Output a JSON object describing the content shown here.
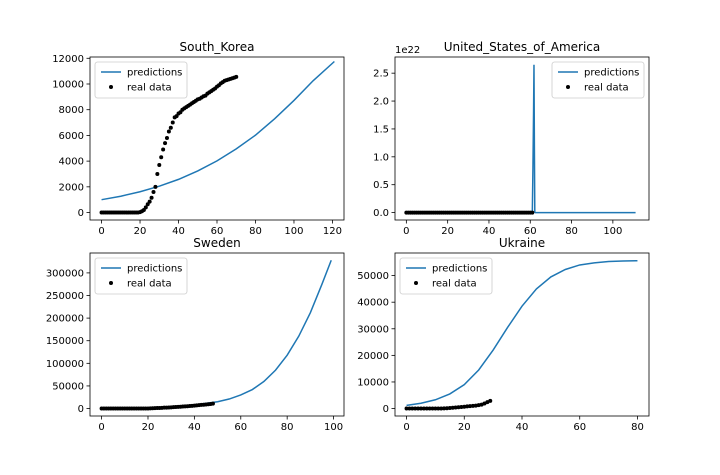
{
  "figure": {
    "background": "#ffffff",
    "pred_color": "#1f77b4",
    "real_color": "#000000"
  },
  "chart_data": [
    {
      "type": "line",
      "title": "South_Korea",
      "xlim": [
        -6,
        126
      ],
      "ylim": [
        -580,
        12100
      ],
      "xticks": [
        0,
        20,
        40,
        60,
        80,
        100,
        120
      ],
      "xtick_labels": [
        "0",
        "20",
        "40",
        "60",
        "80",
        "100",
        "120"
      ],
      "yticks": [
        0,
        2000,
        4000,
        6000,
        8000,
        10000,
        12000
      ],
      "ytick_labels": [
        "0",
        "2000",
        "4000",
        "6000",
        "8000",
        "10000",
        "12000"
      ],
      "offset_label": "",
      "legend": {
        "position": "upper left",
        "entries": [
          "predictions",
          "real data"
        ]
      },
      "series": [
        {
          "name": "predictions",
          "kind": "line",
          "x": [
            0,
            10,
            20,
            30,
            40,
            50,
            60,
            70,
            80,
            90,
            100,
            110,
            121
          ],
          "y": [
            1000,
            1270,
            1620,
            2050,
            2580,
            3240,
            4020,
            4950,
            6020,
            7300,
            8720,
            10260,
            11750
          ]
        },
        {
          "name": "real data",
          "kind": "scatter",
          "x": [
            0,
            1,
            2,
            3,
            4,
            5,
            6,
            7,
            8,
            9,
            10,
            11,
            12,
            13,
            14,
            15,
            16,
            17,
            18,
            19,
            20,
            21,
            22,
            23,
            24,
            25,
            26,
            27,
            28,
            29,
            30,
            31,
            32,
            33,
            34,
            35,
            36,
            37,
            38,
            39,
            40,
            41,
            42,
            43,
            44,
            45,
            46,
            47,
            48,
            49,
            50,
            51,
            52,
            53,
            54,
            55,
            56,
            57,
            58,
            59,
            60,
            61,
            62,
            63,
            64,
            65,
            66,
            67,
            68,
            69,
            70
          ],
          "y": [
            0,
            0,
            0,
            0,
            0,
            0,
            0,
            0,
            0,
            0,
            0,
            0,
            0,
            0,
            0,
            0,
            0,
            0,
            0,
            0,
            30,
            100,
            200,
            400,
            650,
            850,
            1150,
            1600,
            2000,
            3000,
            3700,
            4300,
            4900,
            5400,
            5800,
            6300,
            6600,
            7000,
            7400,
            7500,
            7700,
            7800,
            8000,
            8100,
            8200,
            8300,
            8400,
            8500,
            8600,
            8700,
            8800,
            8850,
            8950,
            9050,
            9100,
            9250,
            9350,
            9450,
            9550,
            9650,
            9800,
            9900,
            10050,
            10150,
            10250,
            10300,
            10350,
            10400,
            10450,
            10500,
            10550
          ]
        }
      ]
    },
    {
      "type": "line",
      "title": "United_States_of_America",
      "xlim": [
        -5.5,
        117.5
      ],
      "ylim": [
        -0.133,
        2.79
      ],
      "xticks": [
        0,
        20,
        40,
        60,
        80,
        100
      ],
      "xtick_labels": [
        "0",
        "20",
        "40",
        "60",
        "80",
        "100"
      ],
      "yticks": [
        0,
        0.5,
        1.0,
        1.5,
        2.0,
        2.5
      ],
      "ytick_labels": [
        "0.0",
        "0.5",
        "1.0",
        "1.5",
        "2.0",
        "2.5"
      ],
      "offset_label": "1e22",
      "legend": {
        "position": "upper right",
        "entries": [
          "predictions",
          "real data"
        ]
      },
      "series": [
        {
          "name": "predictions",
          "kind": "line",
          "x": [
            0,
            61,
            61,
            61.3,
            61.6,
            61.8,
            62,
            62.2,
            62.5,
            111
          ],
          "y": [
            0,
            0,
            0.01,
            0.8,
            1.8,
            2.65,
            1.2,
            0.01,
            0,
            0
          ]
        },
        {
          "name": "real data",
          "kind": "scatter",
          "x": [
            0,
            1,
            2,
            3,
            4,
            5,
            6,
            7,
            8,
            9,
            10,
            11,
            12,
            13,
            14,
            15,
            16,
            17,
            18,
            19,
            20,
            21,
            22,
            23,
            24,
            25,
            26,
            27,
            28,
            29,
            30,
            31,
            32,
            33,
            34,
            35,
            36,
            37,
            38,
            39,
            40,
            41,
            42,
            43,
            44,
            45,
            46,
            47,
            48,
            49,
            50,
            51,
            52,
            53,
            54,
            55,
            56,
            57,
            58,
            59,
            60,
            61
          ],
          "y": [
            0,
            0,
            0,
            0,
            0,
            0,
            0,
            0,
            0,
            0,
            0,
            0,
            0,
            0,
            0,
            0,
            0,
            0,
            0,
            0,
            0,
            0,
            0,
            0,
            0,
            0,
            0,
            0,
            0,
            0,
            0,
            0,
            0,
            0,
            0,
            0,
            0,
            0,
            0,
            0,
            0,
            0,
            0,
            0,
            0,
            0,
            0,
            0,
            0,
            0,
            0,
            0,
            0,
            0,
            0,
            0,
            0,
            0,
            0,
            0,
            0,
            0
          ]
        }
      ]
    },
    {
      "type": "line",
      "title": "Sweden",
      "xlim": [
        -5,
        104.5
      ],
      "ylim": [
        -16500,
        344000
      ],
      "xticks": [
        0,
        20,
        40,
        60,
        80,
        100
      ],
      "xtick_labels": [
        "0",
        "20",
        "40",
        "60",
        "80",
        "100"
      ],
      "yticks": [
        0,
        50000,
        100000,
        150000,
        200000,
        250000,
        300000
      ],
      "ytick_labels": [
        "0",
        "50000",
        "100000",
        "150000",
        "200000",
        "250000",
        "300000"
      ],
      "offset_label": "",
      "legend": {
        "position": "upper left",
        "entries": [
          "predictions",
          "real data"
        ]
      },
      "series": [
        {
          "name": "predictions",
          "kind": "line",
          "x": [
            0,
            10,
            20,
            30,
            40,
            50,
            55,
            60,
            65,
            70,
            75,
            80,
            85,
            90,
            95,
            99
          ],
          "y": [
            0,
            500,
            1500,
            4000,
            8000,
            15000,
            21000,
            30000,
            42000,
            60000,
            85000,
            118000,
            160000,
            212000,
            275000,
            328000
          ]
        },
        {
          "name": "real data",
          "kind": "scatter",
          "x": [
            0,
            1,
            2,
            3,
            4,
            5,
            6,
            7,
            8,
            9,
            10,
            11,
            12,
            13,
            14,
            15,
            16,
            17,
            18,
            19,
            20,
            21,
            22,
            23,
            24,
            25,
            26,
            27,
            28,
            29,
            30,
            31,
            32,
            33,
            34,
            35,
            36,
            37,
            38,
            39,
            40,
            41,
            42,
            43,
            44,
            45,
            46,
            47,
            48
          ],
          "y": [
            0,
            0,
            0,
            0,
            0,
            0,
            0,
            0,
            0,
            0,
            0,
            0,
            0,
            0,
            0,
            0,
            0,
            0,
            0,
            0,
            200,
            400,
            600,
            900,
            1100,
            1300,
            1600,
            1900,
            2100,
            2400,
            2700,
            3000,
            3300,
            3600,
            4000,
            4400,
            4800,
            5200,
            5600,
            6000,
            6500,
            7000,
            7500,
            8000,
            8500,
            9000,
            9500,
            10000,
            11000
          ]
        }
      ]
    },
    {
      "type": "line",
      "title": "Ukraine",
      "xlim": [
        -4,
        84
      ],
      "ylim": [
        -2800,
        58500
      ],
      "xticks": [
        0,
        20,
        40,
        60,
        80
      ],
      "xtick_labels": [
        "0",
        "20",
        "40",
        "60",
        "80"
      ],
      "yticks": [
        0,
        10000,
        20000,
        30000,
        40000,
        50000
      ],
      "ytick_labels": [
        "0",
        "10000",
        "20000",
        "30000",
        "40000",
        "50000"
      ],
      "offset_label": "",
      "legend": {
        "position": "upper left",
        "entries": [
          "predictions",
          "real data"
        ]
      },
      "series": [
        {
          "name": "predictions",
          "kind": "line",
          "x": [
            0,
            5,
            10,
            15,
            20,
            25,
            30,
            35,
            40,
            45,
            50,
            55,
            60,
            65,
            70,
            75,
            80
          ],
          "y": [
            1200,
            2000,
            3300,
            5500,
            9000,
            14500,
            22000,
            30500,
            38500,
            45000,
            49500,
            52300,
            54000,
            54800,
            55300,
            55500,
            55600
          ]
        },
        {
          "name": "real data",
          "kind": "scatter",
          "x": [
            0,
            1,
            2,
            3,
            4,
            5,
            6,
            7,
            8,
            9,
            10,
            11,
            12,
            13,
            14,
            15,
            16,
            17,
            18,
            19,
            20,
            21,
            22,
            23,
            24,
            25,
            26,
            27,
            28,
            29
          ],
          "y": [
            0,
            0,
            0,
            0,
            0,
            0,
            0,
            0,
            0,
            0,
            0,
            0,
            0,
            50,
            100,
            200,
            300,
            400,
            500,
            600,
            700,
            800,
            900,
            1000,
            1100,
            1300,
            1500,
            1900,
            2400,
            2900
          ]
        }
      ]
    }
  ]
}
